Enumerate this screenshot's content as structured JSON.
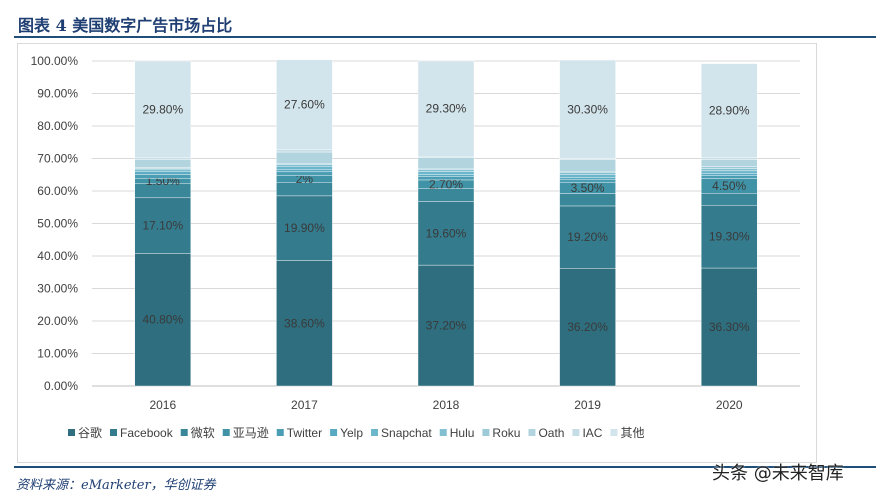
{
  "title": "图表 4 美国数字广告市场占比",
  "source": "资料来源：eMarketer，华创证券",
  "watermark": "头条 @未来智库",
  "chart_data": {
    "type": "bar",
    "stacked": true,
    "categories": [
      "2016",
      "2017",
      "2018",
      "2019",
      "2020"
    ],
    "ylim": [
      0,
      100
    ],
    "yticks": [
      "0.00%",
      "10.00%",
      "20.00%",
      "30.00%",
      "40.00%",
      "50.00%",
      "60.00%",
      "70.00%",
      "80.00%",
      "90.00%",
      "100.00%"
    ],
    "grid": true,
    "legend_position": "bottom",
    "series": [
      {
        "name": "谷歌",
        "color": "#2e6e7e",
        "values": [
          40.8,
          38.6,
          37.2,
          36.2,
          36.3
        ],
        "labels": [
          "40.80%",
          "38.60%",
          "37.20%",
          "36.20%",
          "36.30%"
        ]
      },
      {
        "name": "Facebook",
        "color": "#347b8d",
        "values": [
          17.1,
          19.9,
          19.6,
          19.2,
          19.3
        ],
        "labels": [
          "17.10%",
          "19.90%",
          "19.60%",
          "19.20%",
          "19.30%"
        ]
      },
      {
        "name": "微软",
        "color": "#3a879a",
        "values": [
          4.5,
          4.2,
          3.9,
          3.8,
          3.7
        ],
        "labels": []
      },
      {
        "name": "亚马逊",
        "color": "#4093a6",
        "values": [
          1.5,
          2.0,
          2.7,
          3.5,
          4.5
        ],
        "labels": [
          "1.50%",
          "2%",
          "2.70%",
          "3.50%",
          "4.50%"
        ]
      },
      {
        "name": "Twitter",
        "color": "#4a9db3",
        "values": [
          1.2,
          1.2,
          1.0,
          0.9,
          0.9
        ],
        "labels": []
      },
      {
        "name": "Yelp",
        "color": "#58aac2",
        "values": [
          0.8,
          0.8,
          0.7,
          0.6,
          0.6
        ],
        "labels": []
      },
      {
        "name": "Snapchat",
        "color": "#6cb6cb",
        "values": [
          0.6,
          0.9,
          0.9,
          0.8,
          0.9
        ],
        "labels": []
      },
      {
        "name": "Hulu",
        "color": "#82bfd0",
        "values": [
          0.4,
          0.5,
          0.6,
          0.6,
          0.7
        ],
        "labels": []
      },
      {
        "name": "Roku",
        "color": "#9ccad7",
        "values": [
          0.3,
          0.4,
          0.4,
          0.5,
          0.6
        ],
        "labels": []
      },
      {
        "name": "Oath",
        "color": "#b2d4de",
        "values": [
          2.4,
          3.5,
          3.3,
          3.5,
          2.2
        ],
        "labels": []
      },
      {
        "name": "IAC",
        "color": "#c4dde6",
        "values": [
          0.6,
          0.8,
          0.4,
          0.4,
          0.6
        ],
        "labels": []
      },
      {
        "name": "其他",
        "color": "#d3e5ec",
        "values": [
          29.8,
          27.6,
          29.3,
          30.3,
          28.9
        ],
        "labels": [
          "29.80%",
          "27.60%",
          "29.30%",
          "30.30%",
          "28.90%"
        ]
      }
    ]
  }
}
